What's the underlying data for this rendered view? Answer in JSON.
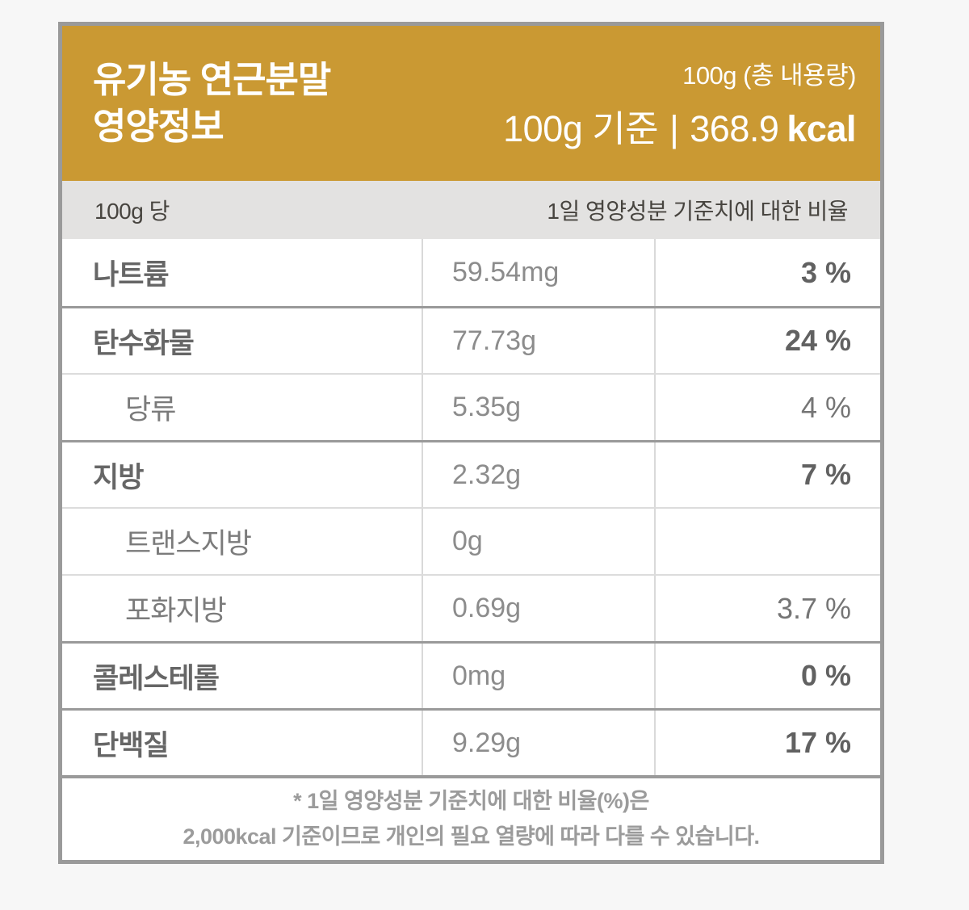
{
  "header": {
    "title_line1": "유기농 연근분말",
    "title_line2": "영양정보",
    "total_amount": "100g (총 내용량)",
    "basis": "100g 기준",
    "separator": "|",
    "kcal_value": "368.9",
    "kcal_unit": "kcal"
  },
  "subheader": {
    "per_amount": "100g 당",
    "daily_value_title": "1일 영양성분 기준치에 대한 비율"
  },
  "table": {
    "rows": [
      {
        "label": "나트륨",
        "amount": "59.54mg",
        "dv": "3 %"
      },
      {
        "label": "탄수화물",
        "amount": "77.73g",
        "dv": "24 %"
      },
      {
        "label": "당류",
        "amount": "5.35g",
        "dv": "4 %"
      },
      {
        "label": "지방",
        "amount": "2.32g",
        "dv": "7 %"
      },
      {
        "label": "트랜스지방",
        "amount": "0g",
        "dv": ""
      },
      {
        "label": "포화지방",
        "amount": "0.69g",
        "dv": "3.7 %"
      },
      {
        "label": "콜레스테롤",
        "amount": "0mg",
        "dv": "0 %"
      },
      {
        "label": "단백질",
        "amount": "9.29g",
        "dv": "17 %"
      }
    ]
  },
  "footnote": {
    "line1": "* 1일 영양성분 기준치에 대한 비율(%)은",
    "line2": "2,000kcal 기준이므로 개인의 필요 열량에 따라 다를 수 있습니다."
  },
  "colors": {
    "accent_gold": "#CA9933",
    "subheader_bg": "#E3E2E1",
    "border_gray": "#9A9A9A",
    "thin_divider": "#D9D9D9",
    "page_bg": "#F7F7F7"
  }
}
